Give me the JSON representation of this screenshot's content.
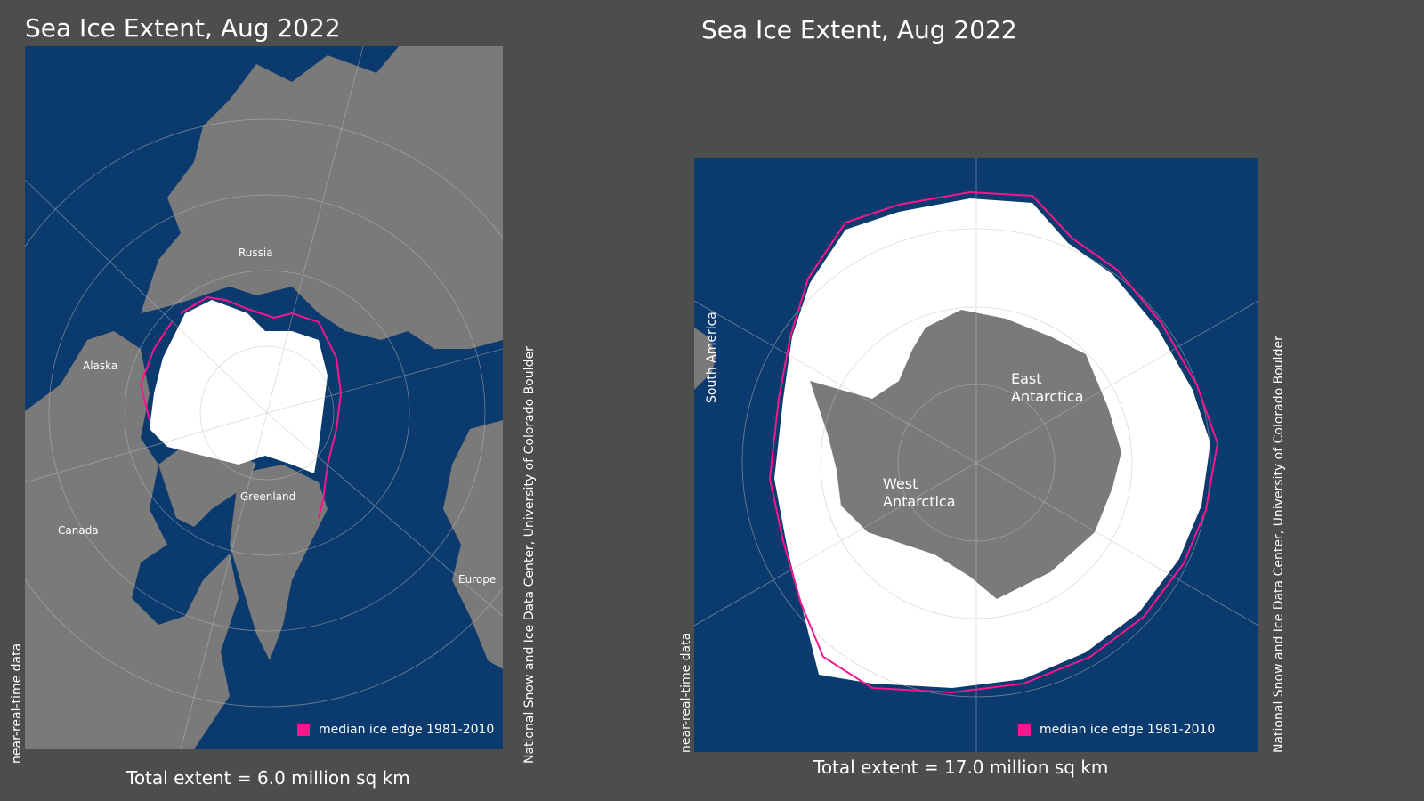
{
  "panels": {
    "arctic": {
      "title": "Sea Ice Extent, Aug 2022",
      "total_extent": "Total extent = 6.0 million sq km",
      "caveat": "near-real-time data",
      "credit": "National Snow and Ice Data Center, University of Colorado Boulder",
      "legend_label": "median ice edge 1981-2010",
      "region_labels": {
        "russia": "Russia",
        "alaska": "Alaska",
        "canada": "Canada",
        "greenland": "Greenland",
        "europe": "Europe"
      }
    },
    "antarctic": {
      "title": "Sea Ice Extent, Aug 2022",
      "total_extent": "Total extent = 17.0 million sq km",
      "caveat": "near-real-time data",
      "credit": "National Snow and Ice Data Center, University of Colorado Boulder",
      "legend_label": "median ice edge 1981-2010",
      "region_labels": {
        "south_america": "South America",
        "east_antarctica_1": "East",
        "east_antarctica_2": "Antarctica",
        "west_antarctica_1": "West",
        "west_antarctica_2": "Antarctica"
      }
    }
  },
  "colors": {
    "background": "#4d4d4d",
    "ocean": "#0b3a6e",
    "land": "#7a7a7a",
    "sea_ice": "#ffffff",
    "median_edge": "#f7168c",
    "graticule": "#bfbfbf"
  }
}
